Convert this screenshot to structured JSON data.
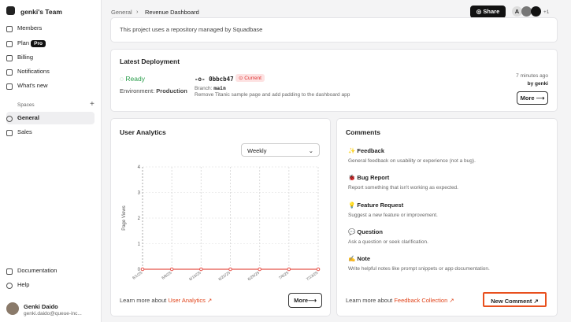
{
  "sidebar": {
    "team": "genki's Team",
    "nav": [
      "Members",
      "Plan",
      "Billing",
      "Notifications",
      "What's new"
    ],
    "plan_badge": "Pro",
    "spaces_label": "Spaces",
    "spaces": [
      "General",
      "Sales"
    ],
    "footer_links": [
      "Documentation",
      "Help"
    ],
    "user": {
      "name": "Genki Daido",
      "email": "genki.daido@queue-inc..."
    }
  },
  "topbar": {
    "breadcrumb": [
      "General",
      "Revenue Dashboard"
    ],
    "share": "Share",
    "avatar_initial": "A",
    "extra_count": "+1"
  },
  "repo_note": "This project uses a repository managed by Squadbase",
  "deployment": {
    "title": "Latest Deployment",
    "status": "Ready",
    "environment_label": "Environment:",
    "environment": "Production",
    "commit": "0bbcb47",
    "badge": "Current",
    "branch_label": "Branch:",
    "branch": "main",
    "message": "Remove Titanic sample page and add padding to the dashboard app",
    "time": "7 minutes ago",
    "author": "by genki",
    "more": "More"
  },
  "analytics": {
    "title": "User Analytics",
    "select": "Weekly",
    "chart": {
      "type": "line",
      "y_label": "Page Views",
      "x": [
        "6/1/25",
        "6/8/25",
        "6/15/25",
        "6/22/25",
        "6/29/25",
        "7/6/25",
        "7/13/25"
      ],
      "values": [
        0,
        0,
        0,
        0,
        0,
        0,
        0
      ],
      "color": "#e5534b",
      "ylim": [
        0,
        4
      ],
      "yticks": [
        0,
        1,
        2,
        3,
        4
      ]
    },
    "learn_more": "Learn more about",
    "link": "User Analytics",
    "more": "More"
  },
  "comments": {
    "title": "Comments",
    "items": [
      {
        "name": "✨ Feedback",
        "desc": "General feedback on usability or experience (not a bug)."
      },
      {
        "name": "🐞 Bug Report",
        "desc": "Report something that isn't working as expected."
      },
      {
        "name": "💡 Feature Request",
        "desc": "Suggest a new feature or improvement."
      },
      {
        "name": "💬 Question",
        "desc": "Ask a question or seek clarification."
      },
      {
        "name": "✍️ Note",
        "desc": "Write helpful notes like prompt snippets or app documentation."
      }
    ],
    "learn_more": "Learn more about",
    "link": "Feedback Collection",
    "button": "New Comment"
  }
}
